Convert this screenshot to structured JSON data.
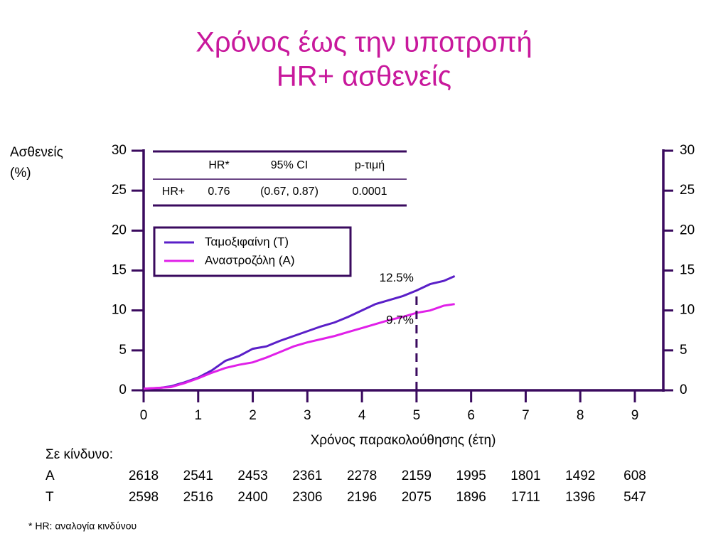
{
  "chart_data": {
    "type": "line",
    "title": [
      "Χρόνος έως την υποτροπή",
      "HR+ ασθενείς"
    ],
    "ylabel": [
      "Ασθενείς",
      "(%)"
    ],
    "xlabel": "Χρόνος παρακολούθησης (έτη)",
    "xlim": [
      0,
      9.5
    ],
    "xticks": [
      0,
      1,
      2,
      3,
      4,
      5,
      6,
      7,
      8,
      9
    ],
    "ylim": [
      0,
      30
    ],
    "yticks": [
      0,
      5,
      10,
      15,
      20,
      25,
      30
    ],
    "y2lim": [
      0,
      30
    ],
    "y2ticks": [
      0,
      5,
      10,
      15,
      20,
      25,
      30
    ],
    "series": [
      {
        "name": "Ταμοξιφαίνη (T)",
        "color": "#5a1fc8",
        "x": [
          0,
          0.3,
          0.5,
          0.75,
          1,
          1.25,
          1.5,
          1.75,
          2,
          2.25,
          2.5,
          2.75,
          3,
          3.25,
          3.5,
          3.75,
          4,
          4.25,
          4.5,
          4.75,
          5,
          5.25,
          5.5,
          5.7
        ],
        "values": [
          0.2,
          0.3,
          0.5,
          1,
          1.6,
          2.5,
          3.7,
          4.3,
          5.2,
          5.5,
          6.2,
          6.8,
          7.4,
          8,
          8.5,
          9.2,
          10,
          10.8,
          11.3,
          11.8,
          12.5,
          13.3,
          13.7,
          14.3
        ]
      },
      {
        "name": "Αναστροζόλη (A)",
        "color": "#e020e8",
        "x": [
          0,
          0.5,
          0.75,
          1,
          1.25,
          1.5,
          1.75,
          2,
          2.25,
          2.5,
          2.75,
          3,
          3.25,
          3.5,
          3.75,
          4,
          4.25,
          4.5,
          4.75,
          5,
          5.25,
          5.5,
          5.7
        ],
        "values": [
          0.2,
          0.4,
          0.9,
          1.5,
          2.2,
          2.8,
          3.2,
          3.5,
          4.1,
          4.8,
          5.5,
          6,
          6.4,
          6.8,
          7.3,
          7.8,
          8.3,
          8.8,
          9.2,
          9.7,
          10,
          10.6,
          10.8
        ]
      }
    ],
    "annotations": [
      {
        "text": "12.5%",
        "x": 5,
        "y": 12.5
      },
      {
        "text": "9.7%",
        "x": 5,
        "y": 9.7
      }
    ],
    "hr_table": {
      "header": [
        "HR*",
        "95% CI",
        "p-τιμή"
      ],
      "row_label": "HR+",
      "row": [
        0.76,
        "(0.67, 0.87)",
        0.0001
      ]
    },
    "at_risk": {
      "title": "Σε κίνδυνο:",
      "rows": [
        {
          "label": "A",
          "values": [
            2618,
            2541,
            2453,
            2361,
            2278,
            2159,
            1995,
            1801,
            1492,
            608
          ]
        },
        {
          "label": "T",
          "values": [
            2598,
            2516,
            2400,
            2306,
            2196,
            2075,
            1896,
            1711,
            1396,
            547
          ]
        }
      ]
    },
    "footnote": "* HR: αναλογία κινδύνου"
  }
}
